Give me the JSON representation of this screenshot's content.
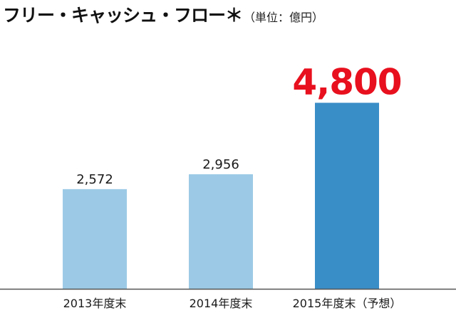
{
  "chart_data": {
    "type": "bar",
    "title": "フリー・キャッシュ・フロー＊",
    "unit_note": "（単位：億円）",
    "xlabel": "",
    "ylabel": "",
    "categories": [
      "2013年度末",
      "2014年度末",
      "2015年度末（予想）"
    ],
    "values": [
      2572,
      2956,
      4800
    ],
    "value_labels": [
      "2,572",
      "2,956",
      "4,800"
    ],
    "highlight_index": 2,
    "ylim": [
      0,
      5800
    ],
    "grid": false,
    "legend": "none",
    "colors": {
      "bar": "#9ccae6",
      "bar_highlight": "#3a8ec8",
      "highlight_label": "#e8101e",
      "baseline": "#555555"
    }
  }
}
